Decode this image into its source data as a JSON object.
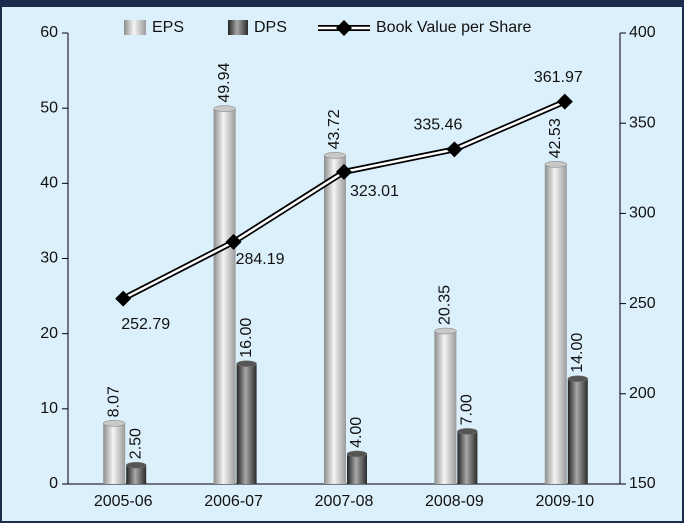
{
  "chart_data": {
    "type": "bar",
    "categories": [
      "2005-06",
      "2006-07",
      "2007-08",
      "2008-09",
      "2009-10"
    ],
    "series": [
      {
        "name": "EPS",
        "color": "#c8c8c8",
        "values": [
          8.07,
          49.94,
          43.72,
          20.35,
          42.53
        ]
      },
      {
        "name": "DPS",
        "color": "#555555",
        "values": [
          2.5,
          16,
          4,
          7,
          14
        ],
        "value_labels": [
          "2.50",
          "16.00",
          "4.00",
          "7.00",
          "14.00"
        ]
      },
      {
        "name": "Book Value per Share",
        "color": "#000000",
        "type": "line",
        "axis": "y2",
        "values": [
          252.79,
          284.19,
          323.01,
          335.46,
          361.97
        ]
      }
    ],
    "ylim": [
      0,
      60
    ],
    "yticks": [
      0,
      10,
      20,
      30,
      40,
      50,
      60
    ],
    "y2lim": [
      150,
      400
    ],
    "y2ticks": [
      150,
      200,
      250,
      300,
      350,
      400
    ]
  }
}
